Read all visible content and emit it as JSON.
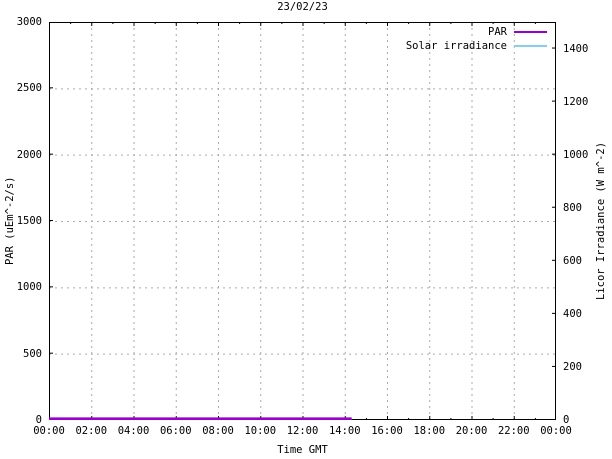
{
  "chart_data": {
    "type": "line",
    "title": "23/02/23",
    "xlabel": "Time GMT",
    "ylabel": "PAR (uEm^-2/s)",
    "y2label": "Licor Irradiance (W m^-2)",
    "xlim_hours": [
      0,
      24
    ],
    "x_major_tick_hours": 2,
    "x_minor_tick_hours": 1,
    "x_tick_labels": [
      "00:00",
      "02:00",
      "04:00",
      "06:00",
      "08:00",
      "10:00",
      "12:00",
      "14:00",
      "16:00",
      "18:00",
      "20:00",
      "22:00",
      "00:00"
    ],
    "ylim": [
      0,
      3000
    ],
    "y_tick_step": 500,
    "y_tick_labels": [
      "0",
      "500",
      "1000",
      "1500",
      "2000",
      "2500",
      "3000"
    ],
    "y2lim": [
      0,
      1500
    ],
    "y2_tick_step": 200,
    "y2_tick_labels": [
      "0",
      "200",
      "400",
      "600",
      "800",
      "1000",
      "1200",
      "1400"
    ],
    "grid": {
      "show": true,
      "color": "#aaaaaa",
      "style": "dashed"
    },
    "axis_color": "#000000",
    "legend": {
      "position": "top-right",
      "entries": [
        "PAR",
        "Solar irradiance"
      ]
    },
    "series": [
      {
        "name": "Solar irradiance",
        "axis": "y2",
        "color": "#87ceeb",
        "line_width": 1.3,
        "x_hours": [
          0,
          1,
          2,
          3,
          4,
          5,
          6,
          7,
          8,
          9,
          10,
          11,
          12,
          13,
          14,
          14.33
        ],
        "values": [
          2,
          2,
          2,
          2,
          2,
          2,
          2,
          2,
          2,
          2,
          2,
          2,
          2,
          2,
          2,
          2
        ]
      },
      {
        "name": "PAR",
        "axis": "y1",
        "color": "#9900cc",
        "line_width": 2.6,
        "x_hours": [
          0,
          1,
          2,
          3,
          4,
          5,
          6,
          7,
          8,
          9,
          10,
          11,
          12,
          13,
          14,
          14.33
        ],
        "values": [
          10,
          10,
          10,
          10,
          10,
          10,
          10,
          10,
          10,
          10,
          10,
          10,
          10,
          10,
          10,
          10
        ]
      }
    ],
    "legend_order": [
      "PAR",
      "Solar irradiance"
    ]
  }
}
